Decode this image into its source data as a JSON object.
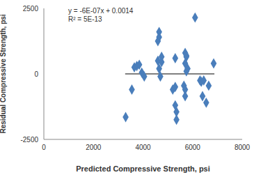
{
  "chart_data": {
    "type": "scatter",
    "x_label": "Predicted Compressive Strength, psi",
    "y_label": "Residual Compressive Strength, psi",
    "annotations": [
      "y = -6E-07x + 0.0014",
      "R² = 5E-13"
    ],
    "x": [
      3300,
      3550,
      3650,
      3750,
      3850,
      3950,
      4050,
      4600,
      4650,
      4650,
      4600,
      4650,
      4700,
      4750,
      4750,
      5200,
      5300,
      5300,
      5300,
      5350,
      5350,
      5650,
      5700,
      5700,
      5700,
      5750,
      5750,
      5700,
      5750,
      5800,
      6100,
      6300,
      6350,
      6400,
      6450,
      6550,
      6650,
      6850
    ],
    "values": [
      -1650,
      -600,
      250,
      300,
      350,
      50,
      -100,
      1250,
      1600,
      1400,
      500,
      200,
      -100,
      650,
      450,
      -600,
      -500,
      600,
      -1200,
      -1450,
      -1750,
      -450,
      -850,
      -600,
      800,
      650,
      700,
      400,
      100,
      200,
      2150,
      -250,
      -300,
      -850,
      -250,
      -1100,
      -450,
      400
    ],
    "color": "#4a7ebb",
    "marker": "diamond",
    "trendline": {
      "x": [
        3280,
        6880
      ],
      "values": [
        0,
        0
      ],
      "color": "#000000"
    },
    "xlim": [
      0,
      8000
    ],
    "xticks": [
      0,
      2000,
      4000,
      6000,
      8000
    ],
    "ylim": [
      -2500,
      2500
    ],
    "yticks": [
      -2500,
      0,
      2500
    ],
    "grid": false
  }
}
